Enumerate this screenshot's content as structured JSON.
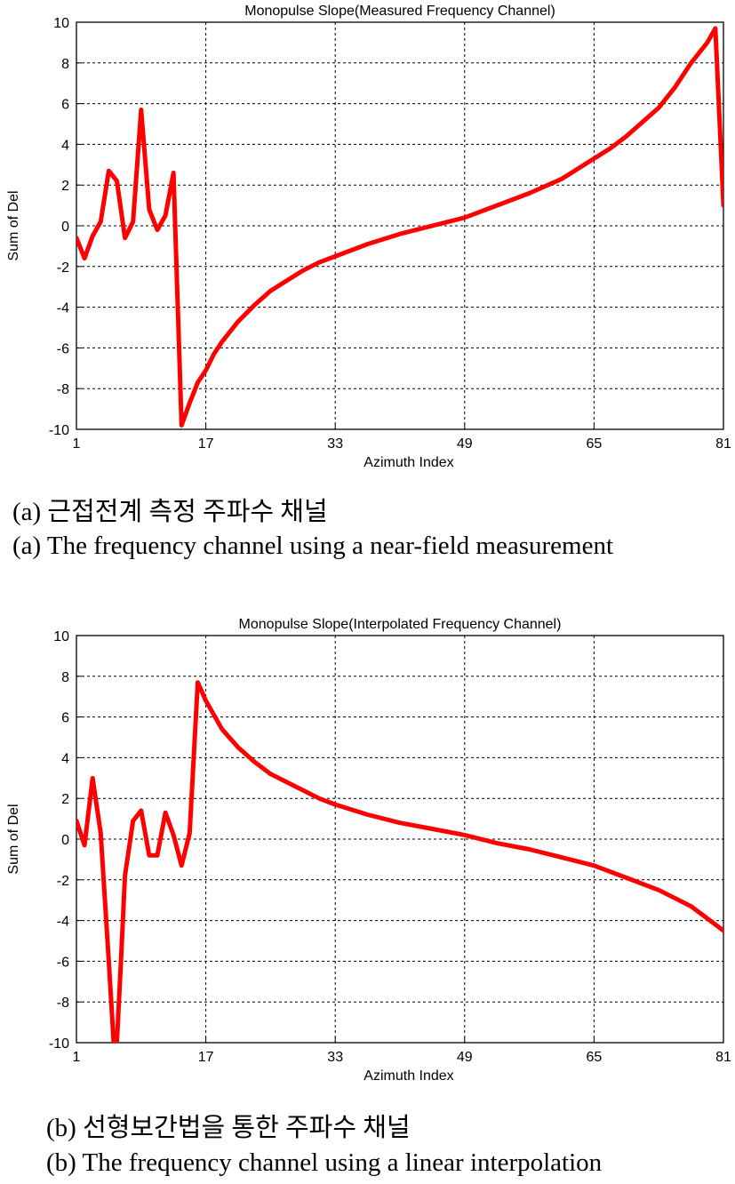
{
  "charts": [
    {
      "id": "a",
      "title": "Monopulse Slope(Measured Frequency Channel)",
      "xlabel": "Azimuth Index",
      "ylabel": "Sum of Del",
      "caption_kr": "(a) 근접전계 측정 주파수 채널",
      "caption_en": "(a) The frequency channel using a near-field measurement"
    },
    {
      "id": "b",
      "title": "Monopulse Slope(Interpolated Frequency Channel)",
      "xlabel": "Azimuth Index",
      "ylabel": "Sum of Del",
      "caption_kr": "(b) 선형보간법을 통한 주파수 채널",
      "caption_en": "(b) The frequency channel using a linear interpolation"
    }
  ],
  "chart_data": [
    {
      "type": "line",
      "title": "Monopulse Slope(Measured Frequency Channel)",
      "xlabel": "Azimuth Index",
      "ylabel": "Sum of Del",
      "xlim": [
        1,
        81
      ],
      "ylim": [
        -10,
        10
      ],
      "xticks": [
        1,
        17,
        33,
        49,
        65,
        81
      ],
      "yticks": [
        -10,
        -8,
        -6,
        -4,
        -2,
        0,
        2,
        4,
        6,
        8,
        10
      ],
      "grid": true,
      "line_color": "#ff0000",
      "series": [
        {
          "x": [
            1,
            2,
            3,
            4,
            5,
            6,
            7,
            8,
            9,
            10,
            11,
            12,
            13,
            14,
            15,
            16,
            17,
            18,
            19,
            21,
            23,
            25,
            27,
            29,
            31,
            33,
            35,
            37,
            41,
            45,
            49,
            53,
            57,
            61,
            63,
            65,
            67,
            69,
            71,
            73,
            75,
            77,
            79,
            80,
            81
          ],
          "y": [
            -0.6,
            -1.6,
            -0.5,
            0.2,
            2.7,
            2.2,
            -0.6,
            0.2,
            5.7,
            0.8,
            -0.2,
            0.5,
            2.6,
            -9.8,
            -8.7,
            -7.7,
            -7.1,
            -6.3,
            -5.7,
            -4.7,
            -3.9,
            -3.2,
            -2.7,
            -2.2,
            -1.8,
            -1.5,
            -1.2,
            -0.9,
            -0.4,
            0.0,
            0.4,
            1.0,
            1.6,
            2.3,
            2.8,
            3.3,
            3.8,
            4.4,
            5.1,
            5.8,
            6.8,
            8.0,
            9.0,
            9.7,
            1.0
          ]
        }
      ]
    },
    {
      "type": "line",
      "title": "Monopulse Slope(Interpolated Frequency Channel)",
      "xlabel": "Azimuth Index",
      "ylabel": "Sum of Del",
      "xlim": [
        1,
        81
      ],
      "ylim": [
        -10,
        10
      ],
      "xticks": [
        1,
        17,
        33,
        49,
        65,
        81
      ],
      "yticks": [
        -10,
        -8,
        -6,
        -4,
        -2,
        0,
        2,
        4,
        6,
        8,
        10
      ],
      "grid": true,
      "line_color": "#ff0000",
      "series": [
        {
          "x": [
            1,
            2,
            3,
            4,
            5,
            5.6,
            6,
            6.5,
            7,
            8,
            9,
            10,
            11,
            12,
            13,
            14,
            15,
            16,
            17,
            19,
            21,
            23,
            25,
            27,
            29,
            31,
            33,
            37,
            41,
            45,
            49,
            53,
            57,
            61,
            65,
            69,
            73,
            77,
            79,
            81
          ],
          "y": [
            0.9,
            -0.3,
            3.0,
            0.3,
            -6.0,
            -10.0,
            -10.0,
            -6.0,
            -1.8,
            0.9,
            1.4,
            -0.8,
            -0.8,
            1.3,
            0.2,
            -1.3,
            0.3,
            7.7,
            6.8,
            5.4,
            4.5,
            3.8,
            3.2,
            2.8,
            2.4,
            2.0,
            1.7,
            1.2,
            0.8,
            0.5,
            0.2,
            -0.2,
            -0.5,
            -0.9,
            -1.3,
            -1.9,
            -2.5,
            -3.3,
            -3.9,
            -4.5
          ]
        }
      ]
    }
  ]
}
